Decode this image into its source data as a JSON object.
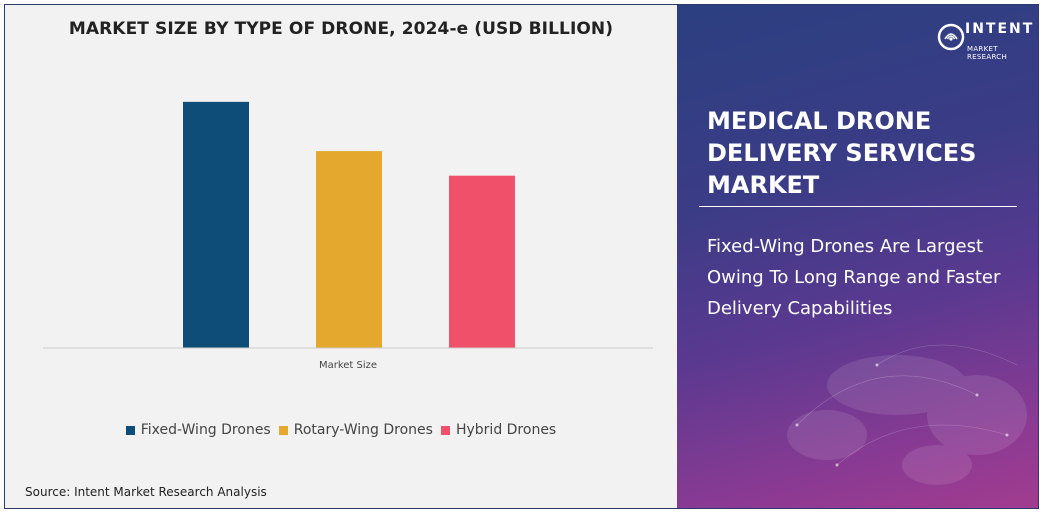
{
  "chart_data": {
    "type": "bar",
    "title": "MARKET SIZE BY TYPE OF DRONE, 2024-e (USD BILLION)",
    "categories": [
      "Market Size"
    ],
    "series": [
      {
        "name": "Fixed-Wing Drones",
        "values": [
          100
        ],
        "color": "#0e4d78"
      },
      {
        "name": "Rotary-Wing Drones",
        "values": [
          80
        ],
        "color": "#e5a82e"
      },
      {
        "name": "Hybrid Drones",
        "values": [
          70
        ],
        "color": "#f0506a"
      }
    ],
    "xlabel": "Market Size",
    "ylabel": "",
    "ylim": [
      0,
      104
    ],
    "grid": false,
    "legend_position": "bottom"
  },
  "source": "Source: Intent Market Research Analysis",
  "logo": {
    "name": "INTENT",
    "subtitle": "MARKET RESEARCH"
  },
  "report_title": "MEDICAL DRONE DELIVERY SERVICES MARKET",
  "insight": "Fixed-Wing Drones Are Largest Owing To Long Range and Faster Delivery Capabilities",
  "colors": {
    "chart_background": "#f2f2f2",
    "panel_gradient_start": "#2b3f80",
    "panel_gradient_end": "#a23c8f",
    "text_dark": "#222222"
  }
}
